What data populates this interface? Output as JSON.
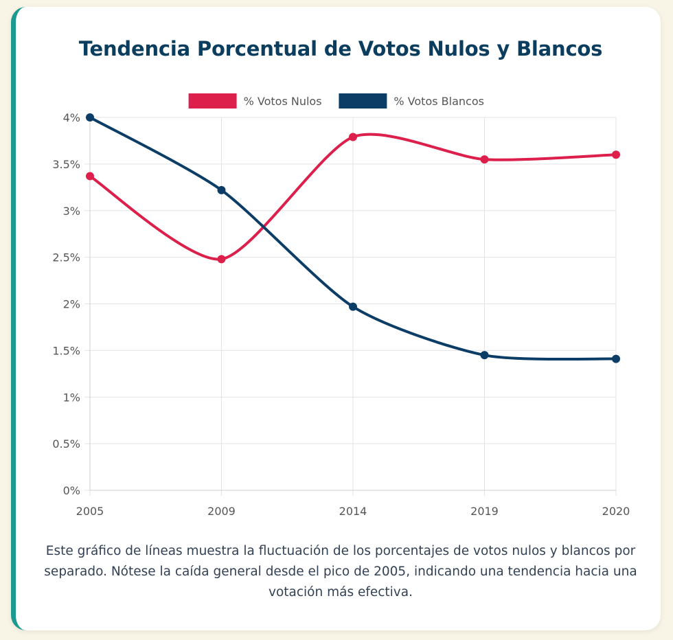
{
  "title": "Tendencia Porcentual de Votos Nulos y Blancos",
  "caption": "Este gráfico de líneas muestra la fluctuación de los porcentajes de votos nulos y blancos por separado. Nótese la caída general desde el pico de 2005, indicando una tendencia hacia una votación más efectiva.",
  "colors": {
    "accent": "#1c9a8f",
    "title": "#0b3d5e",
    "background": "#f8f4e6"
  },
  "chart_data": {
    "type": "line",
    "title": "Tendencia Porcentual de Votos Nulos y Blancos",
    "categories": [
      "2005",
      "2009",
      "2014",
      "2019",
      "2020"
    ],
    "series": [
      {
        "name": "% Votos Nulos",
        "color": "#dc1f4b",
        "values": [
          3.37,
          2.48,
          3.79,
          3.55,
          3.6
        ]
      },
      {
        "name": "% Votos Blancos",
        "color": "#0b3d66",
        "values": [
          4.0,
          3.22,
          1.97,
          1.45,
          1.41
        ]
      }
    ],
    "y_ticks": [
      "0%",
      "0.5%",
      "1%",
      "1.5%",
      "2%",
      "2.5%",
      "3%",
      "3.5%",
      "4%"
    ],
    "ylim": [
      0,
      4
    ],
    "y_step": 0.5,
    "grid": true,
    "legend_position": "top-center"
  }
}
